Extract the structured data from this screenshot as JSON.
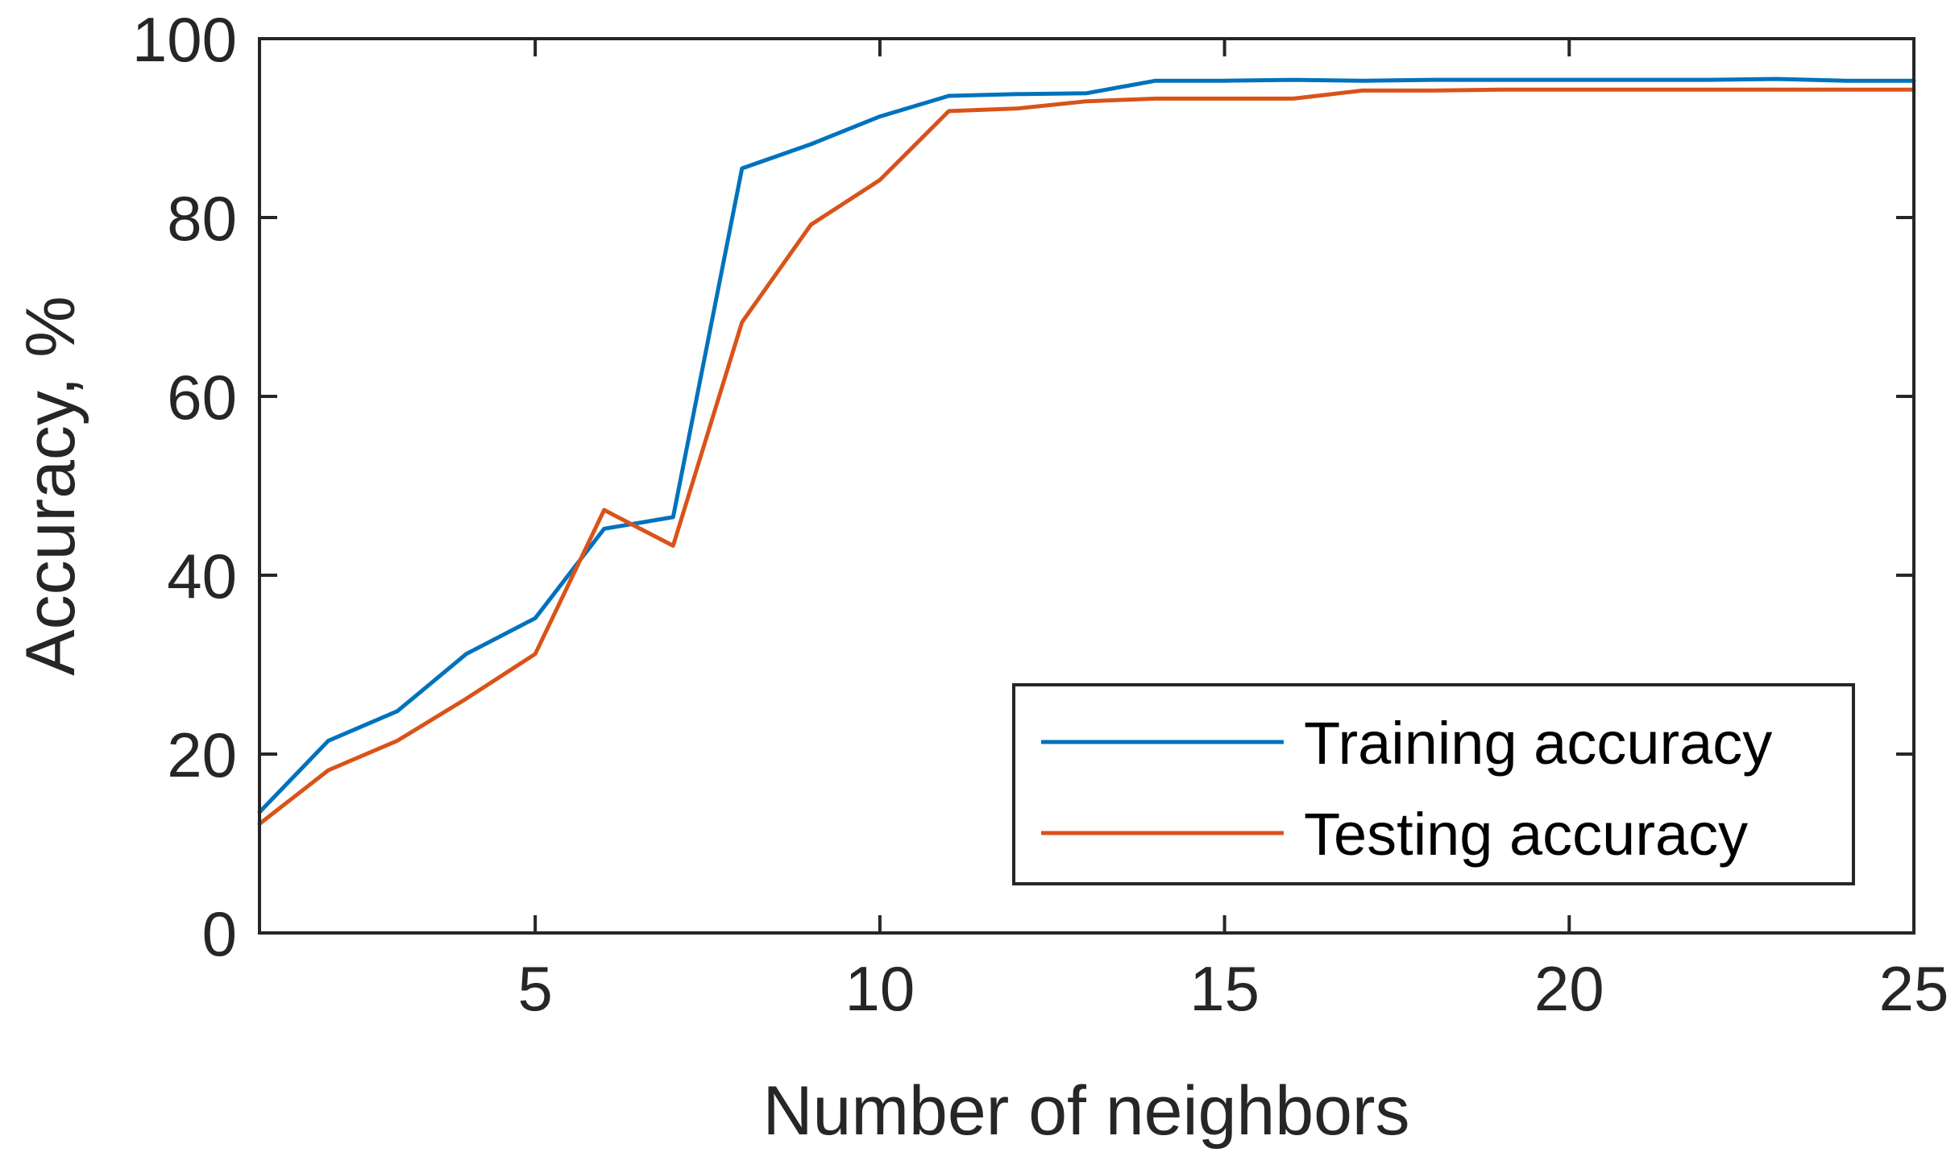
{
  "chart_data": {
    "type": "line",
    "title": "",
    "xlabel": "Number of neighbors",
    "ylabel": "Accuracy, %",
    "xlim": [
      1,
      25
    ],
    "ylim": [
      0,
      100
    ],
    "xticks": [
      5,
      10,
      15,
      20,
      25
    ],
    "yticks": [
      0,
      20,
      40,
      60,
      80,
      100
    ],
    "grid": false,
    "legend_location": "bottom-right",
    "x": [
      1,
      2,
      3,
      4,
      5,
      6,
      7,
      8,
      9,
      10,
      11,
      12,
      13,
      14,
      15,
      16,
      17,
      18,
      19,
      20,
      21,
      22,
      23,
      24,
      25
    ],
    "series": [
      {
        "name": "Training accuracy",
        "color": "#0072BD",
        "values": [
          13.5,
          21.5,
          24.8,
          31.2,
          35.2,
          45.2,
          46.5,
          85.5,
          88.2,
          91.3,
          93.6,
          93.8,
          93.9,
          95.3,
          95.3,
          95.4,
          95.3,
          95.4,
          95.4,
          95.4,
          95.4,
          95.4,
          95.5,
          95.3,
          95.3
        ]
      },
      {
        "name": "Testing accuracy",
        "color": "#D95319",
        "values": [
          12.2,
          18.2,
          21.5,
          26.2,
          31.2,
          47.3,
          43.3,
          68.3,
          79.2,
          84.2,
          91.9,
          92.2,
          93.0,
          93.3,
          93.3,
          93.3,
          94.2,
          94.2,
          94.3,
          94.3,
          94.3,
          94.3,
          94.3,
          94.3,
          94.3
        ]
      }
    ]
  }
}
